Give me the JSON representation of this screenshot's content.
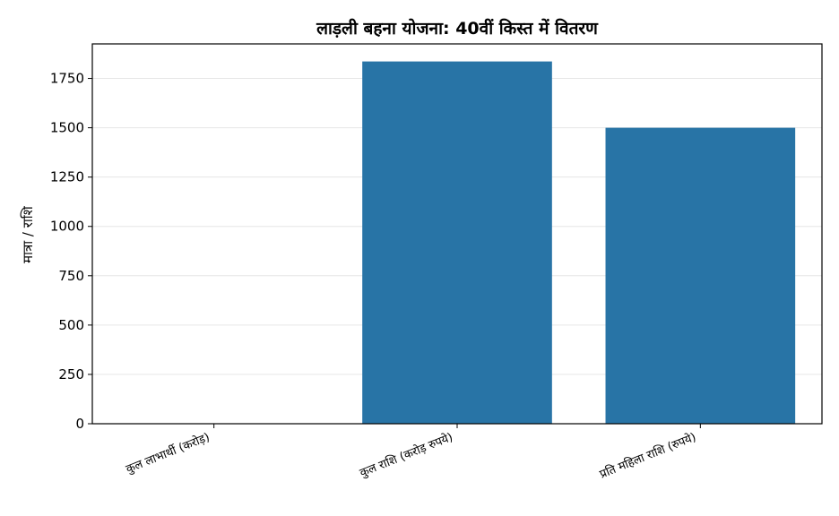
{
  "chart_data": {
    "type": "bar",
    "title": "लाड़ली बहना योजना: 40वीं किस्त में वितरण",
    "xlabel": "",
    "ylabel": "मात्रा / राशि",
    "categories": [
      "कुल लाभार्थी (करोड़)",
      "कुल राशि (करोड़ रुपये)",
      "प्रति महिला राशि (रुपये)"
    ],
    "values": [
      1.26,
      1836,
      1500
    ],
    "ylim": [
      0,
      1925
    ],
    "yticks": [
      0,
      250,
      500,
      750,
      1000,
      1250,
      1500,
      1750
    ],
    "grid": "y",
    "legend": "none",
    "colors": {
      "bar": "#2874a6",
      "grid": "#e6e6e6",
      "axis": "#000000"
    }
  }
}
